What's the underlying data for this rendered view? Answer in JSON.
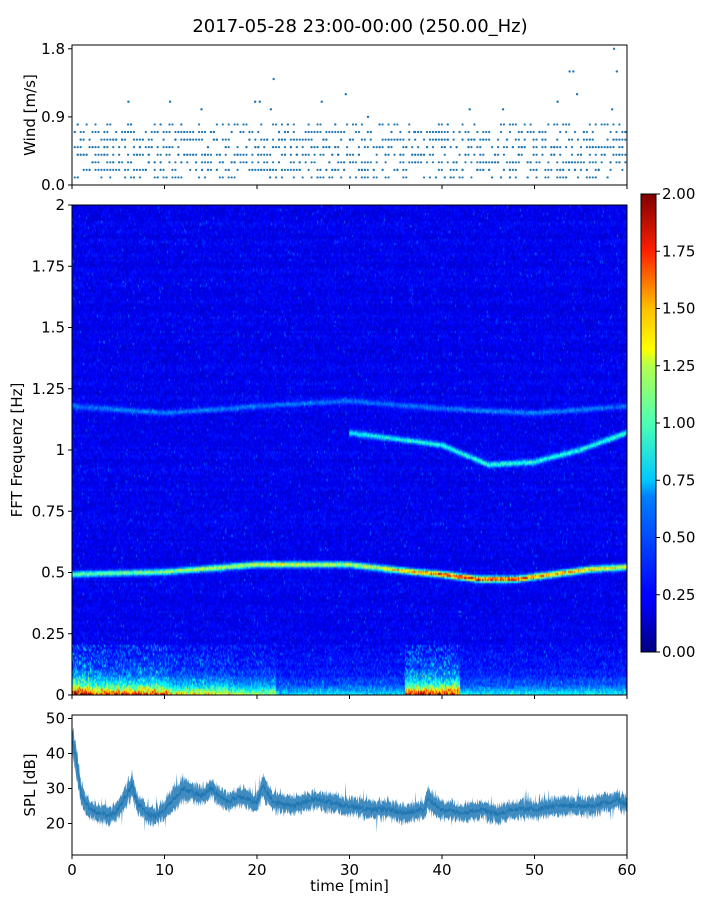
{
  "figure": {
    "title": "2017-05-28 23:00-00:00 (250.00_Hz)"
  },
  "chart_data": [
    {
      "id": "wind",
      "type": "scatter",
      "ylabel": "Wind [m/s]",
      "xlim": [
        0,
        60
      ],
      "ylim": [
        0,
        1.85
      ],
      "yticks": [
        0.0,
        0.9,
        1.8
      ],
      "ytick_labels": [
        "0.0",
        "0.9",
        "1.8"
      ],
      "marker_color": "#1f77b4",
      "quantization_step": 0.1,
      "points": [
        [
          6.1,
          1.1
        ],
        [
          10.6,
          1.1
        ],
        [
          14.0,
          1.0
        ],
        [
          19.8,
          1.1
        ],
        [
          20.3,
          1.1
        ],
        [
          21.5,
          1.0
        ],
        [
          21.8,
          1.4
        ],
        [
          27.0,
          1.1
        ],
        [
          29.6,
          1.2
        ],
        [
          32.0,
          0.9
        ],
        [
          37.0,
          0.7
        ],
        [
          43.0,
          1.0
        ],
        [
          46.6,
          1.0
        ],
        [
          52.5,
          1.1
        ],
        [
          53.8,
          1.5
        ],
        [
          54.2,
          1.5
        ],
        [
          54.6,
          1.2
        ],
        [
          58.4,
          1.0
        ],
        [
          58.6,
          1.8
        ],
        [
          58.9,
          1.5
        ]
      ],
      "typical_range": [
        0.1,
        0.8
      ]
    },
    {
      "id": "spectrogram",
      "type": "heatmap",
      "ylabel": "FFT Frequenz [Hz]",
      "xlim": [
        0,
        60
      ],
      "ylim": [
        0,
        2
      ],
      "yticks": [
        0,
        0.25,
        0.5,
        0.75,
        1,
        1.25,
        1.5,
        1.75,
        2
      ],
      "ytick_labels": [
        "0",
        "0.25",
        "0.5",
        "0.75",
        "1",
        "1.25",
        "1.5",
        "1.75",
        "2"
      ],
      "colormap": "jet",
      "clim": [
        0.0,
        2.0
      ],
      "colorbar_ticks": [
        0.0,
        0.25,
        0.5,
        0.75,
        1.0,
        1.25,
        1.5,
        1.75,
        2.0
      ],
      "colorbar_tick_labels": [
        "0.00",
        "0.25",
        "0.50",
        "0.75",
        "1.00",
        "1.25",
        "1.50",
        "1.75",
        "2.00"
      ],
      "bands": [
        {
          "t": [
            0,
            10,
            20,
            30,
            37,
            40,
            44,
            48,
            52,
            56,
            60
          ],
          "f": [
            0.49,
            0.5,
            0.53,
            0.53,
            0.5,
            0.49,
            0.47,
            0.47,
            0.49,
            0.51,
            0.52
          ],
          "level": [
            0.8,
            0.9,
            1.1,
            1.0,
            1.3,
            1.6,
            1.7,
            1.6,
            1.4,
            1.3,
            1.1
          ]
        },
        {
          "t": [
            30,
            40,
            45,
            50,
            55,
            60
          ],
          "f": [
            1.07,
            1.02,
            0.94,
            0.95,
            1.0,
            1.07
          ],
          "level": [
            0.6,
            0.65,
            0.7,
            0.7,
            0.65,
            0.7
          ]
        },
        {
          "t": [
            0,
            10,
            20,
            30,
            40,
            50,
            60
          ],
          "f": [
            1.18,
            1.15,
            1.18,
            1.2,
            1.17,
            1.15,
            1.18
          ],
          "level": [
            0.3,
            0.3,
            0.3,
            0.3,
            0.3,
            0.3,
            0.3
          ]
        }
      ],
      "low_frequency_bursts": [
        {
          "t0": 0.0,
          "t1": 2.0,
          "level": 1.9
        },
        {
          "t0": 2.0,
          "t1": 10.5,
          "level": 1.5
        },
        {
          "t0": 10.5,
          "t1": 17.0,
          "level": 1.1
        },
        {
          "t0": 17.0,
          "t1": 22.0,
          "level": 0.9
        },
        {
          "t0": 22.0,
          "t1": 36.0,
          "level": 0.5
        },
        {
          "t0": 36.0,
          "t1": 42.0,
          "level": 1.7
        },
        {
          "t0": 42.0,
          "t1": 60.0,
          "level": 0.55
        }
      ]
    },
    {
      "id": "spl",
      "type": "line",
      "ylabel": "SPL [dB]",
      "xlabel": "time [min]",
      "xlim": [
        0,
        60
      ],
      "ylim": [
        11,
        51
      ],
      "yticks": [
        20,
        30,
        40,
        50
      ],
      "ytick_labels": [
        "20",
        "30",
        "40",
        "50"
      ],
      "xticks": [
        0,
        10,
        20,
        30,
        40,
        50,
        60
      ],
      "xtick_labels": [
        "0",
        "10",
        "20",
        "30",
        "40",
        "50",
        "60"
      ],
      "line_color": "#1f77b4",
      "x": [
        0,
        0.5,
        1,
        2,
        3,
        4,
        5,
        5.8,
        6.5,
        7,
        8,
        9,
        10,
        11,
        12,
        13,
        14,
        15,
        16,
        17,
        18,
        19,
        20,
        20.7,
        21.5,
        22,
        24,
        26,
        28,
        30,
        32,
        34,
        36,
        38,
        38.5,
        40,
        42,
        44,
        46,
        48,
        50,
        52,
        54,
        56,
        58,
        59,
        60
      ],
      "y": [
        44,
        38,
        28,
        24,
        23,
        22,
        24,
        28,
        31,
        26,
        23,
        22,
        24,
        27,
        30,
        29,
        28,
        30,
        28,
        26,
        28,
        27,
        26,
        31,
        27,
        26,
        25,
        27,
        26,
        25,
        24,
        24,
        23,
        24,
        27,
        24,
        23,
        24,
        23,
        24,
        24,
        25,
        25,
        25,
        26,
        27,
        25
      ],
      "spread": [
        5,
        5,
        4,
        3,
        3,
        3,
        3,
        4,
        4,
        3,
        3,
        3,
        3,
        4,
        4,
        3,
        3,
        3,
        3,
        3,
        3,
        3,
        3,
        4,
        3,
        3,
        3,
        3,
        3,
        3,
        3,
        3,
        3,
        3,
        4,
        3,
        3,
        3,
        3,
        3,
        3,
        3,
        3,
        3,
        3,
        3,
        3
      ]
    }
  ]
}
